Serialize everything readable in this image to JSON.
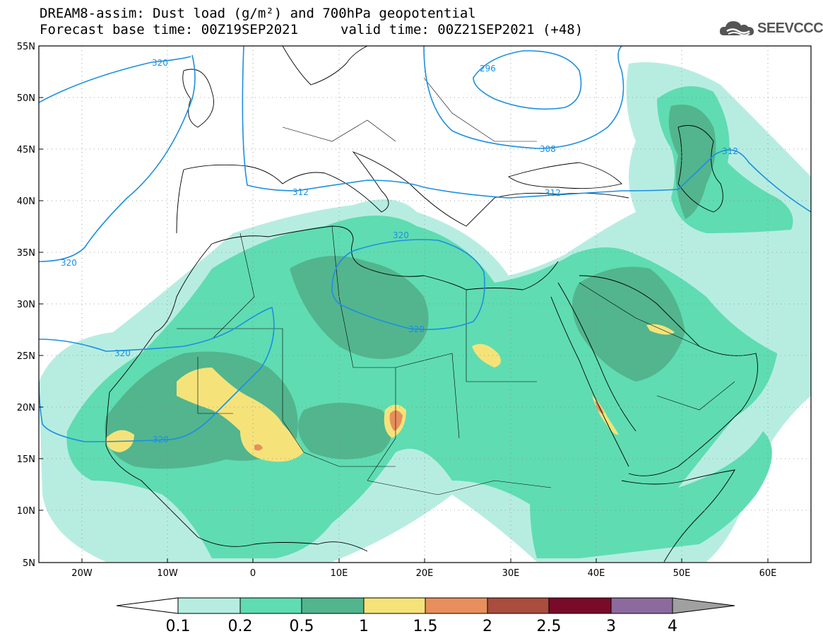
{
  "header": {
    "title_line1": "DREAM8-assim: Dust load (g/m²) and 700hPa geopotential",
    "title_line2": "Forecast base time: 00Z19SEP2021",
    "valid_time": "valid time: 00Z21SEP2021 (+48)"
  },
  "logo": {
    "text": "SEEVCCC",
    "icon": "cloud-logo-icon"
  },
  "map": {
    "lat_labels": [
      "55N",
      "50N",
      "45N",
      "40N",
      "35N",
      "30N",
      "25N",
      "20N",
      "15N",
      "10N",
      "5N"
    ],
    "lon_labels": [
      "20W",
      "10W",
      "0",
      "10E",
      "20E",
      "30E",
      "40E",
      "50E",
      "60E"
    ],
    "contour_labels": [
      "320",
      "296",
      "308",
      "312",
      "312",
      "312",
      "320",
      "320",
      "320",
      "320",
      "320"
    ],
    "contour_color": "#1c8fe0",
    "grid": "dotted"
  },
  "colorbar": {
    "labels": [
      "0.1",
      "0.2",
      "0.5",
      "1",
      "1.5",
      "2",
      "2.5",
      "3",
      "4"
    ],
    "colors": [
      "#ffffff",
      "#b7ede1",
      "#5fdcb2",
      "#52b58e",
      "#f5e37a",
      "#e88f5d",
      "#a94d3e",
      "#7a0a2a",
      "#8c6a9e",
      "#a0a0a0"
    ]
  }
}
